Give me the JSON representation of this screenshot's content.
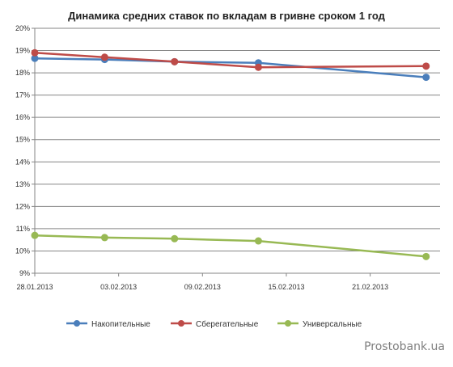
{
  "chart_data": {
    "type": "line",
    "title": "Динамика средних ставок по вкладам в гривне сроком 1 год",
    "xlabel": "",
    "ylabel": "",
    "x_ticks": [
      "28.01.2013",
      "03.02.2013",
      "09.02.2013",
      "15.02.2013",
      "21.02.2013"
    ],
    "x_range": [
      "2013-01-28",
      "2013-02-26"
    ],
    "y_ticks": [
      "9%",
      "10%",
      "11%",
      "12%",
      "13%",
      "14%",
      "15%",
      "16%",
      "17%",
      "18%",
      "19%",
      "20%"
    ],
    "ylim": [
      9,
      20
    ],
    "grid": "horizontal",
    "legend_position": "bottom",
    "x": [
      "2013-01-28",
      "2013-02-02",
      "2013-02-07",
      "2013-02-13",
      "2013-02-25"
    ],
    "series": [
      {
        "name": "Накопительные",
        "color": "#4a7ebb",
        "values": [
          18.65,
          18.6,
          18.5,
          18.45,
          17.8
        ]
      },
      {
        "name": "Сберегательные",
        "color": "#be4b48",
        "values": [
          18.9,
          18.7,
          18.5,
          18.25,
          18.3
        ]
      },
      {
        "name": "Универсальные",
        "color": "#98b954",
        "values": [
          10.7,
          10.6,
          10.55,
          10.45,
          9.75
        ]
      }
    ]
  },
  "watermark": "Prostobank.ua"
}
